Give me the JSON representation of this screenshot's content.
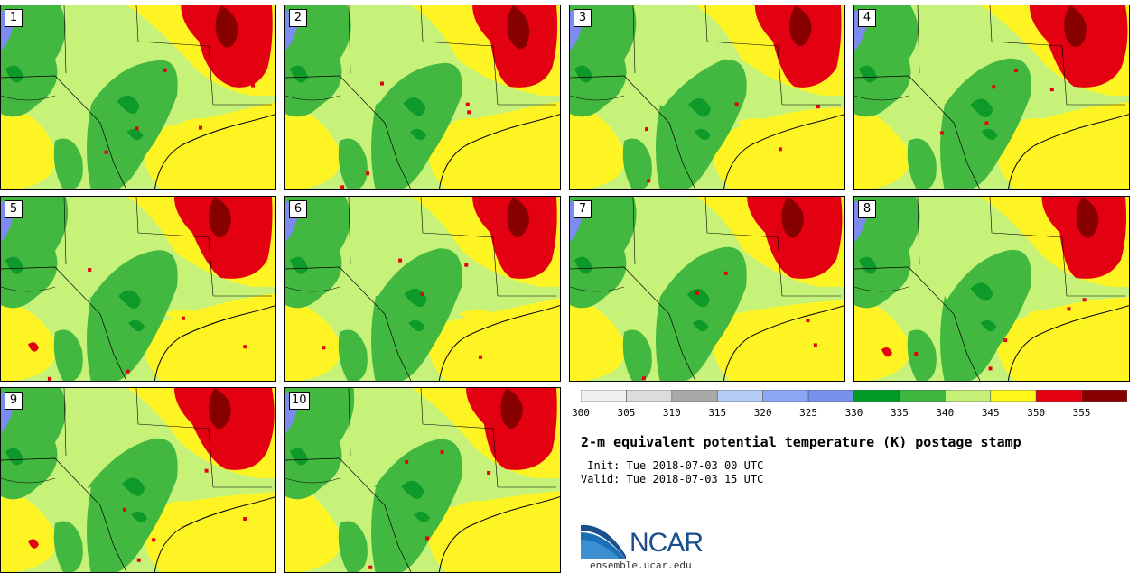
{
  "stamps": [
    {
      "label": "1"
    },
    {
      "label": "2"
    },
    {
      "label": "3"
    },
    {
      "label": "4"
    },
    {
      "label": "5"
    },
    {
      "label": "6"
    },
    {
      "label": "7"
    },
    {
      "label": "8"
    },
    {
      "label": "9"
    },
    {
      "label": "10"
    }
  ],
  "colorbar": {
    "ticks": [
      "300",
      "305",
      "310",
      "315",
      "320",
      "325",
      "330",
      "335",
      "340",
      "345",
      "350",
      "355"
    ],
    "colors": [
      "#f0f0f0",
      "#dcdcdc",
      "#a9a9a9",
      "#b5cdf5",
      "#8aa8f4",
      "#7690ee",
      "#009a25",
      "#3db73d",
      "#c6f178",
      "#fff61a",
      "#e4000e",
      "#860000"
    ]
  },
  "title": "2-m equivalent potential temperature (K) postage stamp",
  "init": " Init: Tue 2018-07-03 00 UTC",
  "valid": "Valid: Tue 2018-07-03 15 UTC",
  "logo": {
    "text": "NCAR",
    "url": "ensemble.ucar.edu"
  },
  "palette": {
    "blue": "#7b8cee",
    "darkgreen": "#0e9a2a",
    "green": "#43b840",
    "lightgreen": "#c7f27a",
    "yellow": "#fff423",
    "red": "#e30010",
    "darkred": "#870000"
  }
}
